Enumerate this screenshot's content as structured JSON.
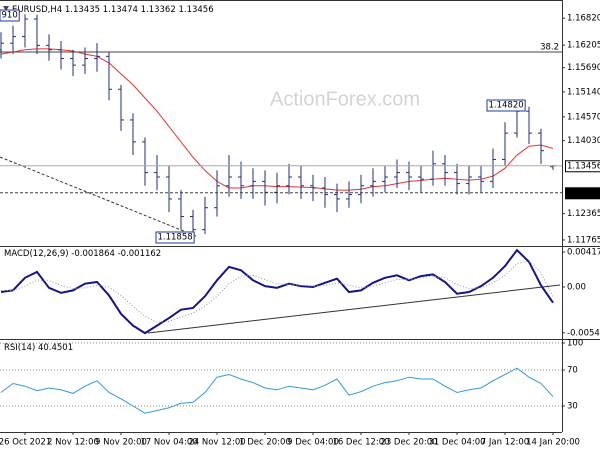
{
  "chart_data": [
    {
      "type": "ohlc",
      "title": "EURUSD,H4",
      "watermark": "ActionForex.com",
      "color": "#1f2f7a",
      "open": [
        1.161,
        1.1625,
        1.164,
        1.168,
        1.162,
        1.161,
        1.159,
        1.1575,
        1.159,
        1.1595,
        1.152,
        1.145,
        1.14,
        1.133,
        1.132,
        1.127,
        1.123,
        1.12,
        1.125,
        1.13,
        1.132,
        1.13,
        1.131,
        1.1285,
        1.13,
        1.132,
        1.13,
        1.1295,
        1.128,
        1.127,
        1.128,
        1.13,
        1.131,
        1.132,
        1.133,
        1.132,
        1.1315,
        1.135,
        1.133,
        1.1305,
        1.132,
        1.131,
        1.136,
        1.142,
        1.147,
        1.142,
        1.13435
      ],
      "high": [
        1.165,
        1.1665,
        1.1691,
        1.169,
        1.1645,
        1.163,
        1.161,
        1.1615,
        1.1625,
        1.1605,
        1.153,
        1.1465,
        1.141,
        1.137,
        1.1345,
        1.129,
        1.1245,
        1.1275,
        1.1335,
        1.137,
        1.1355,
        1.134,
        1.1335,
        1.133,
        1.135,
        1.1345,
        1.1325,
        1.132,
        1.1305,
        1.131,
        1.1325,
        1.134,
        1.1345,
        1.136,
        1.1355,
        1.1345,
        1.138,
        1.137,
        1.135,
        1.1345,
        1.1345,
        1.1385,
        1.1445,
        1.1482,
        1.148,
        1.143,
        1.13474
      ],
      "low": [
        1.159,
        1.16,
        1.1615,
        1.16,
        1.1585,
        1.1565,
        1.155,
        1.1555,
        1.156,
        1.1495,
        1.1425,
        1.137,
        1.13,
        1.129,
        1.124,
        1.12,
        1.11858,
        1.119,
        1.123,
        1.1275,
        1.127,
        1.127,
        1.1255,
        1.126,
        1.128,
        1.127,
        1.1265,
        1.125,
        1.124,
        1.125,
        1.126,
        1.1275,
        1.1285,
        1.1295,
        1.129,
        1.1285,
        1.13,
        1.13,
        1.128,
        1.128,
        1.1285,
        1.1295,
        1.1345,
        1.141,
        1.1395,
        1.135,
        1.13362
      ],
      "close": [
        1.1625,
        1.164,
        1.168,
        1.162,
        1.161,
        1.159,
        1.1575,
        1.159,
        1.1595,
        1.152,
        1.145,
        1.14,
        1.133,
        1.132,
        1.127,
        1.123,
        1.12,
        1.125,
        1.13,
        1.132,
        1.13,
        1.131,
        1.1285,
        1.13,
        1.132,
        1.13,
        1.1295,
        1.128,
        1.127,
        1.128,
        1.13,
        1.131,
        1.132,
        1.133,
        1.132,
        1.1315,
        1.135,
        1.133,
        1.1305,
        1.132,
        1.131,
        1.136,
        1.142,
        1.147,
        1.142,
        1.138,
        1.13456
      ],
      "overlays": [
        {
          "color": "#e8332a",
          "values": [
            1.16,
            1.1605,
            1.161,
            1.1612,
            1.1612,
            1.161,
            1.1607,
            1.16,
            1.1595,
            1.158,
            1.1555,
            1.153,
            1.15,
            1.147,
            1.1435,
            1.14,
            1.1365,
            1.1335,
            1.131,
            1.1295,
            1.1295,
            1.13,
            1.13,
            1.1298,
            1.1298,
            1.1297,
            1.1296,
            1.1293,
            1.129,
            1.129,
            1.1292,
            1.1298,
            1.13,
            1.1305,
            1.131,
            1.1312,
            1.1315,
            1.1317,
            1.1315,
            1.1313,
            1.1315,
            1.1322,
            1.134,
            1.137,
            1.139,
            1.1393,
            1.1385
          ]
        }
      ],
      "hlines": [
        {
          "value": 1.1605,
          "label": "38.2",
          "style": "solid",
          "label_at": "line"
        },
        {
          "value": 1.1284,
          "label": "1.12840",
          "style": "dashed",
          "label_at": "axis"
        }
      ],
      "current_line": true,
      "annotations": [
        "910",
        "1.14820",
        "1.11858"
      ],
      "ylim": [
        1.1165,
        1.1712
      ],
      "yticks": [
        {
          "value": 1.1682,
          "label": "1.16820"
        },
        1.16205,
        {
          "value": 1.1569,
          "label": "1.15690"
        },
        {
          "value": 1.1514,
          "label": "1.15140"
        },
        {
          "value": 1.1457,
          "label": "1.14570"
        },
        {
          "value": 1.1403,
          "label": "1.14030"
        },
        1.12365,
        1.11765
      ],
      "grid": false
    },
    {
      "type": "line",
      "title": "MACD(12,26,9)",
      "series": [
        {
          "color": "#14148c",
          "width": 2,
          "style": "solid",
          "values": [
            -0.0006,
            -0.0004,
            0.0011,
            0.0018,
            -0.0001,
            -0.0007,
            -0.0004,
            0.0004,
            0.0006,
            -0.001,
            -0.0032,
            -0.0046,
            -0.0055,
            -0.0046,
            -0.0037,
            -0.0027,
            -0.0025,
            -0.0011,
            0.0008,
            0.0024,
            0.002,
            0.0008,
            0.0001,
            -0.0001,
            0.0004,
            0.0001,
            0,
            0.0005,
            0.001,
            -0.0006,
            -0.0004,
            0.0005,
            0.0011,
            0.0014,
            0.0008,
            0.0013,
            0.0015,
            0.0006,
            -0.0008,
            -0.0006,
            0.0001,
            0.0011,
            0.0025,
            0.0044,
            0.003,
            0.0002,
            -0.001864
          ]
        },
        {
          "color": "#9a9a9a",
          "width": 1,
          "style": "dotted",
          "values": [
            -0.0004,
            -0.0004,
            0.0001,
            0.0008,
            0.0008,
            0.0002,
            -0.0002,
            -0.0001,
            0.0002,
            0,
            -0.001,
            -0.0023,
            -0.0035,
            -0.0042,
            -0.0041,
            -0.0036,
            -0.0031,
            -0.0023,
            -0.0011,
            0.0004,
            0.0013,
            0.0014,
            0.0009,
            0.0004,
            0.0003,
            0.0002,
            0.0001,
            0.0002,
            0.0005,
            0.0002,
            -0.0001,
            0.0001,
            0.0005,
            0.0009,
            0.0009,
            0.0011,
            0.0013,
            0.0011,
            0.0003,
            -0.0002,
            -0.0001,
            0.0005,
            0.0014,
            0.0028,
            0.0031,
            0.0017,
            -0.001162
          ]
        }
      ],
      "ylim": [
        -0.00596,
        0.00489
      ],
      "yticks": [
        0.00417,
        {
          "value": 0,
          "label": "0.00"
        },
        -0.005456
      ],
      "grid": false
    },
    {
      "type": "line",
      "title": "RSI(14)",
      "categories": [
        null,
        null,
        "26 Oct 2021",
        null,
        null,
        null,
        "2 Nov 12:00",
        null,
        null,
        null,
        "9 Nov 20:00",
        null,
        null,
        null,
        "17 Nov 04:00",
        null,
        null,
        null,
        "24 Nov 12:00",
        null,
        null,
        null,
        "1 Dec 20:00",
        null,
        null,
        null,
        "9 Dec 04:00",
        null,
        null,
        null,
        "16 Dec 12:00",
        null,
        null,
        null,
        "23 Dec 20:00",
        null,
        null,
        null,
        "31 Dec 04:00",
        null,
        null,
        null,
        "7 Jan 12:00",
        null,
        null,
        null,
        "14 Jan 20:00"
      ],
      "series": [
        {
          "color": "#3399e6",
          "width": 1,
          "style": "solid",
          "values": [
            45,
            55,
            52,
            47,
            50,
            48,
            44,
            52,
            58,
            45,
            38,
            30,
            22,
            25,
            28,
            33,
            34,
            45,
            62,
            65,
            60,
            56,
            50,
            48,
            52,
            50,
            48,
            53,
            60,
            42,
            46,
            52,
            56,
            58,
            62,
            60,
            60,
            52,
            45,
            48,
            50,
            58,
            65,
            72,
            62,
            55,
            40.4501
          ]
        }
      ],
      "ylim": [
        0,
        100
      ],
      "yticks": [
        100,
        70,
        30
      ],
      "grid": true
    }
  ]
}
